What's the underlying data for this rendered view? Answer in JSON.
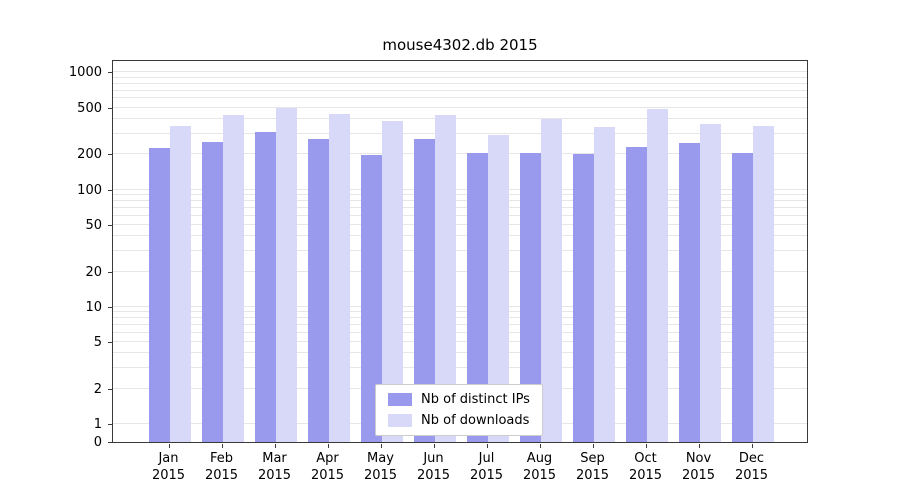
{
  "title": "mouse4302.db 2015",
  "chart_data": {
    "type": "bar",
    "title": "mouse4302.db 2015",
    "xlabel": "",
    "ylabel": "",
    "yscale": "symlog",
    "grid": true,
    "legend_position": "lower center",
    "ylim": [
      0,
      1300
    ],
    "yticks": [
      1000,
      500,
      200,
      100,
      50,
      20,
      10,
      5,
      2,
      1,
      0
    ],
    "categories": [
      "Jan",
      "Feb",
      "Mar",
      "Apr",
      "May",
      "Jun",
      "Jul",
      "Aug",
      "Sep",
      "Oct",
      "Nov",
      "Dec"
    ],
    "category_year": "2015",
    "series": [
      {
        "name": "Nb of distinct IPs",
        "color": "#9999ee",
        "values": [
          225,
          255,
          310,
          270,
          197,
          272,
          207,
          207,
          202,
          230,
          250,
          207
        ]
      },
      {
        "name": "Nb of downloads",
        "color": "#d8d8f8",
        "values": [
          350,
          430,
          495,
          440,
          385,
          430,
          295,
          400,
          340,
          490,
          365,
          350
        ]
      }
    ]
  }
}
